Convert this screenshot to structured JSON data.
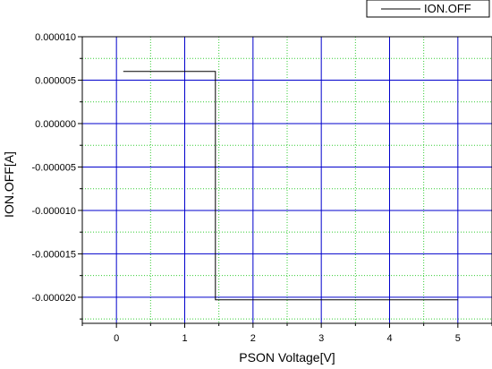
{
  "chart_data": {
    "type": "line",
    "title": "",
    "xlabel": "PSON Voltage[V]",
    "ylabel": "ION.OFF[A]",
    "xlim": [
      -0.5,
      5.5
    ],
    "ylim": [
      -2.3e-05,
      1e-05
    ],
    "x_ticks": [
      0,
      1,
      2,
      3,
      4,
      5
    ],
    "x_tick_labels": [
      "0",
      "1",
      "2",
      "3",
      "4",
      "5"
    ],
    "y_ticks": [
      1e-05,
      5e-06,
      0,
      -5e-06,
      -1e-05,
      -1.5e-05,
      -2e-05
    ],
    "y_tick_labels": [
      "0.000010",
      "0.000005",
      "0.000000",
      "-0.000005",
      "-0.000010",
      "-0.000015",
      "-0.000020"
    ],
    "x_minor_ticks": [
      -0.5,
      0.5,
      1.5,
      2.5,
      3.5,
      4.5,
      5.5
    ],
    "y_minor_ticks": [
      7.5e-06,
      2.5e-06,
      -2.5e-06,
      -7.5e-06,
      -1.25e-05,
      -1.75e-05,
      -2.25e-05
    ],
    "grid": true,
    "major_grid_color": "#0000cc",
    "minor_grid_color": "#33cc33",
    "line_color": "#000000",
    "legend_position": "top-right",
    "series": [
      {
        "name": "ION.OFF",
        "x": [
          0.1,
          1.45,
          1.45,
          5.0
        ],
        "y": [
          6e-06,
          6e-06,
          -2.03e-05,
          -2.03e-05
        ]
      }
    ]
  }
}
